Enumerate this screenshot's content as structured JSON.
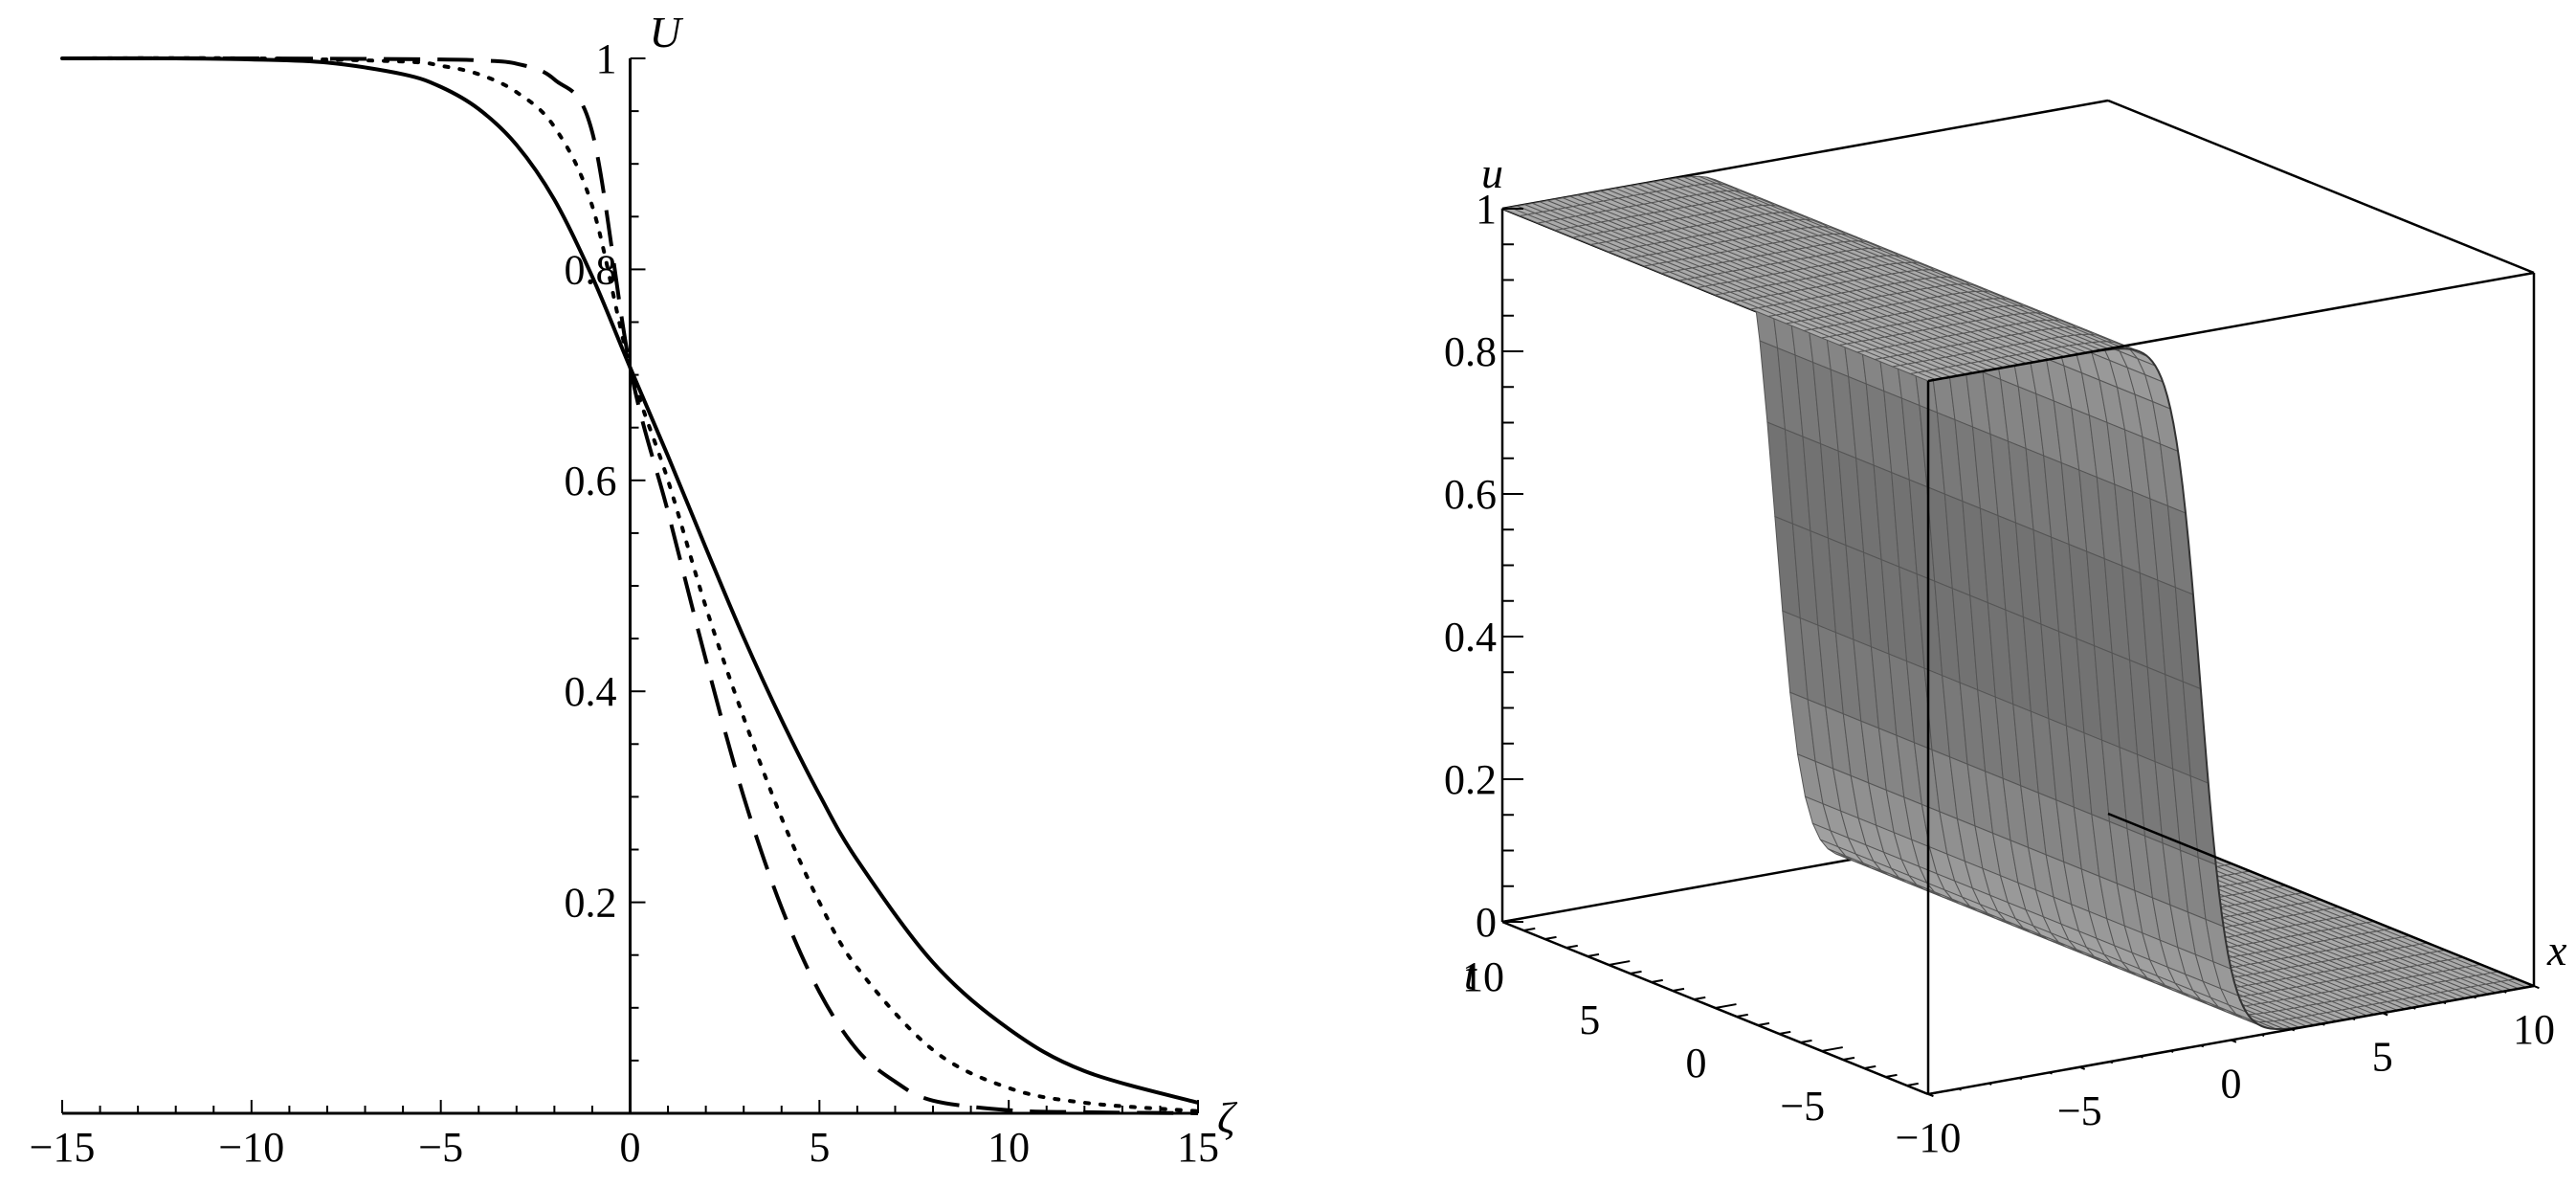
{
  "chart_data": [
    {
      "type": "line",
      "ylabel": "U",
      "xlabel": "ζ",
      "xlim": [
        -15,
        15
      ],
      "ylim": [
        0,
        1
      ],
      "xticks": [
        "−15",
        "−10",
        "−5",
        "0",
        "5",
        "10",
        "15"
      ],
      "yticks": [
        "0.2",
        "0.4",
        "0.6",
        "0.8",
        "1"
      ],
      "grid": false,
      "legend": "none",
      "series": [
        {
          "style": "solid",
          "x": [
            -15,
            -12,
            -10,
            -8,
            -6,
            -5,
            -4,
            -3,
            -2,
            -1,
            0,
            1,
            2,
            3,
            4,
            5,
            6,
            8,
            10,
            12,
            15
          ],
          "y": [
            1.0,
            1.0,
            0.999,
            0.996,
            0.985,
            0.973,
            0.952,
            0.918,
            0.866,
            0.793,
            0.707,
            0.623,
            0.536,
            0.451,
            0.373,
            0.302,
            0.24,
            0.143,
            0.08,
            0.04,
            0.01
          ]
        },
        {
          "style": "dotted",
          "x": [
            -15,
            -10,
            -6,
            -5,
            -4,
            -3,
            -2,
            -1,
            0,
            1,
            2,
            3,
            4,
            5,
            6,
            8,
            10,
            12,
            15
          ],
          "y": [
            1.0,
            1.0,
            0.997,
            0.993,
            0.985,
            0.968,
            0.935,
            0.86,
            0.707,
            0.6,
            0.48,
            0.375,
            0.28,
            0.2,
            0.138,
            0.06,
            0.024,
            0.01,
            0.002
          ]
        },
        {
          "style": "dashed",
          "x": [
            -15,
            -10,
            -5,
            -4,
            -3,
            -2,
            -1,
            0,
            1,
            2,
            3,
            4,
            5,
            6,
            7,
            8,
            10,
            12,
            15
          ],
          "y": [
            1.0,
            1.0,
            0.999,
            0.998,
            0.995,
            0.98,
            0.93,
            0.707,
            0.57,
            0.43,
            0.3,
            0.195,
            0.115,
            0.06,
            0.03,
            0.012,
            0.003,
            0.001,
            0.0
          ]
        }
      ]
    },
    {
      "type": "surface3d",
      "xlabel": "x",
      "ylabel": "t",
      "zlabel": "u",
      "xlim": [
        -10,
        10
      ],
      "ylim": [
        -10,
        10
      ],
      "zlim": [
        0,
        1
      ],
      "xticks": [
        "−10",
        "−5",
        "0",
        "5",
        "10"
      ],
      "yticks": [
        "−5",
        "0",
        "5",
        "10"
      ],
      "zticks": [
        "0",
        "0.2",
        "0.4",
        "0.6",
        "0.8",
        "1"
      ],
      "surface_color": "#8a8a8a",
      "mesh_color": "#555555",
      "description_values": {
        "front_step_center_x": -1,
        "step_steepness": 3
      }
    }
  ]
}
